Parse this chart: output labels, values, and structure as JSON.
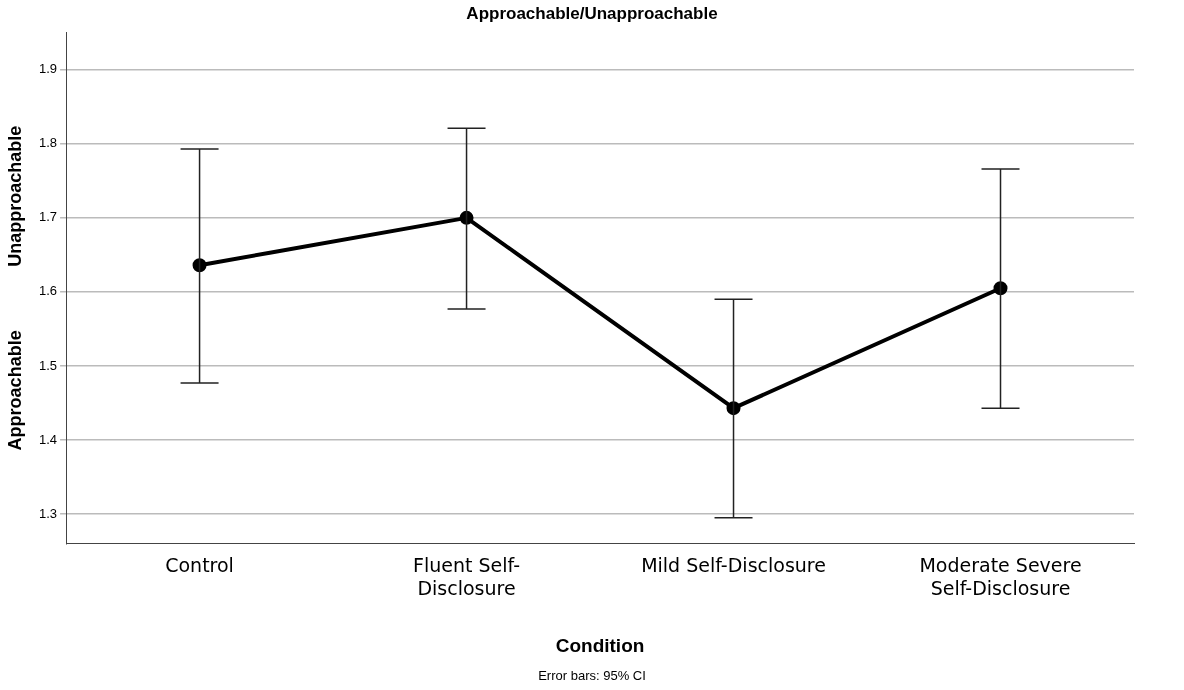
{
  "chart_data": {
    "type": "line",
    "title": "Approachable/Unapproachable",
    "xlabel": "Condition",
    "ylabel": "Approachable",
    "annotations": [
      "Unapproachable",
      "Error bars: 95% CI"
    ],
    "categories": [
      "Control",
      "Fluent Self-Disclosure",
      "Mild Self-Disclosure",
      "Moderate Severe Self-Disclosure"
    ],
    "values": [
      1.636,
      1.7,
      1.443,
      1.605
    ],
    "errors": [
      [
        1.477,
        1.793
      ],
      [
        1.577,
        1.821
      ],
      [
        1.295,
        1.59
      ],
      [
        1.443,
        1.766
      ]
    ],
    "color": "#000000",
    "ylim": [
      1.26,
      1.95
    ],
    "yticks": [
      1.3,
      1.4,
      1.5,
      1.6,
      1.7,
      1.8,
      1.9
    ],
    "grid": "y",
    "legend": false,
    "marker": "circle",
    "line_style": "solid"
  }
}
